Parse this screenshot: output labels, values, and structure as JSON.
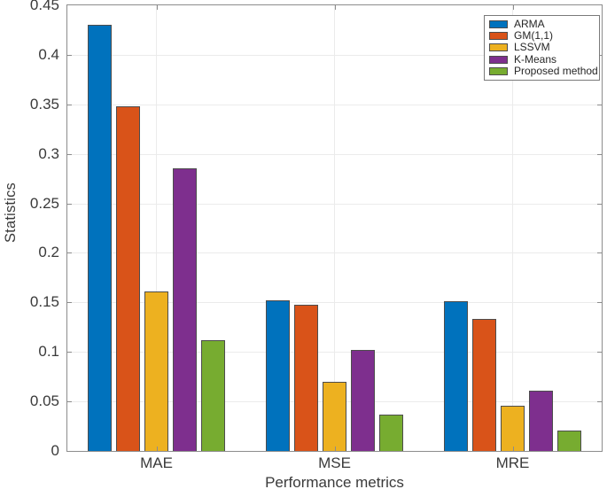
{
  "chart_data": {
    "type": "bar",
    "title": "",
    "categories": [
      "MAE",
      "MSE",
      "MRE"
    ],
    "series": [
      {
        "name": "ARMA",
        "color": "#0072BD",
        "values": [
          0.43,
          0.152,
          0.151
        ]
      },
      {
        "name": "GM(1,1)",
        "color": "#D95319",
        "values": [
          0.348,
          0.148,
          0.133
        ]
      },
      {
        "name": "LSSVM",
        "color": "#EDB120",
        "values": [
          0.161,
          0.07,
          0.046
        ]
      },
      {
        "name": "K-Means",
        "color": "#7E2F8E",
        "values": [
          0.285,
          0.102,
          0.061
        ]
      },
      {
        "name": "Proposed method",
        "color": "#77AC30",
        "values": [
          0.112,
          0.037,
          0.021
        ]
      }
    ],
    "xlabel": "Performance metrics",
    "ylabel": "Statistics",
    "ylim": [
      0,
      0.45
    ],
    "ytick_step": 0.05,
    "ytick_labels": [
      "0",
      "0.05",
      "0.1",
      "0.15",
      "0.2",
      "0.25",
      "0.3",
      "0.35",
      "0.4",
      "0.45"
    ],
    "grid": "both",
    "legend_position": "top-right"
  },
  "colors": {
    "background": "#ffffff",
    "grid": "#ebebeb",
    "axis": "#8c8c8c",
    "text": "#3a3a3a",
    "bar_edge": "#4d4d4d",
    "legend_border": "#7a7a7a"
  }
}
